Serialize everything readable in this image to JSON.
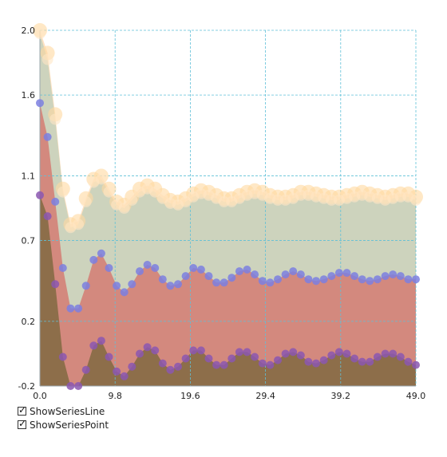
{
  "chart_data": {
    "type": "area",
    "title": "",
    "xlabel": "",
    "ylabel": "",
    "xlim": [
      0,
      49
    ],
    "ylim": [
      -0.2,
      2.0
    ],
    "x_ticks": [
      "0.0",
      "9.8",
      "19.6",
      "29.4",
      "39.2",
      "49.0"
    ],
    "y_ticks": [
      "-0.2",
      "0.2",
      "0.7",
      "1.1",
      "1.6",
      "2.0"
    ],
    "grid": true,
    "x": [
      0,
      1,
      2,
      3,
      4,
      5,
      6,
      7,
      8,
      9,
      10,
      11,
      12,
      13,
      14,
      15,
      16,
      17,
      18,
      19,
      20,
      21,
      22,
      23,
      24,
      25,
      26,
      27,
      28,
      29,
      30,
      31,
      32,
      33,
      34,
      35,
      36,
      37,
      38,
      39,
      40,
      41,
      42,
      43,
      44,
      45,
      46,
      47,
      48,
      49
    ],
    "series": [
      {
        "fill": "#ffe2c2",
        "point_color": "#ffd9a0",
        "values": [
          2.0,
          1.86,
          1.48,
          1.02,
          0.8,
          0.82,
          0.96,
          1.08,
          1.1,
          1.02,
          0.94,
          0.92,
          0.97,
          1.02,
          1.04,
          1.02,
          0.98,
          0.95,
          0.94,
          0.96,
          0.99,
          1.01,
          1.0,
          0.98,
          0.96,
          0.96,
          0.98,
          1.0,
          1.01,
          1.0,
          0.98,
          0.97,
          0.97,
          0.98,
          1.0,
          1.0,
          0.99,
          0.98,
          0.97,
          0.97,
          0.98,
          0.99,
          1.0,
          0.99,
          0.98,
          0.97,
          0.98,
          0.99,
          0.99,
          0.97
        ]
      },
      {
        "fill": "#cdd3bd",
        "point_color": "#ffe6c4",
        "values": [
          1.98,
          1.82,
          1.45,
          1.0,
          0.78,
          0.8,
          0.94,
          1.06,
          1.08,
          1.0,
          0.92,
          0.9,
          0.95,
          1.0,
          1.02,
          1.0,
          0.96,
          0.93,
          0.92,
          0.94,
          0.97,
          0.99,
          0.98,
          0.96,
          0.94,
          0.94,
          0.96,
          0.98,
          0.99,
          0.98,
          0.96,
          0.95,
          0.95,
          0.96,
          0.98,
          0.98,
          0.97,
          0.96,
          0.95,
          0.95,
          0.96,
          0.97,
          0.98,
          0.97,
          0.96,
          0.95,
          0.96,
          0.97,
          0.97,
          0.95
        ]
      },
      {
        "fill": "#d3897e",
        "point_color": "#7b7fe0",
        "values": [
          1.55,
          1.34,
          0.94,
          0.53,
          0.28,
          0.28,
          0.42,
          0.58,
          0.62,
          0.53,
          0.42,
          0.38,
          0.43,
          0.51,
          0.55,
          0.53,
          0.46,
          0.42,
          0.43,
          0.48,
          0.53,
          0.52,
          0.48,
          0.44,
          0.44,
          0.47,
          0.51,
          0.52,
          0.49,
          0.45,
          0.44,
          0.46,
          0.49,
          0.51,
          0.49,
          0.46,
          0.45,
          0.46,
          0.48,
          0.5,
          0.5,
          0.48,
          0.46,
          0.45,
          0.46,
          0.48,
          0.49,
          0.48,
          0.46,
          0.46
        ]
      },
      {
        "fill": "#8d6e4a",
        "point_color": "#8b57b0",
        "values": [
          0.98,
          0.85,
          0.43,
          -0.02,
          -0.2,
          -0.2,
          -0.1,
          0.05,
          0.08,
          -0.02,
          -0.11,
          -0.14,
          -0.08,
          0.0,
          0.04,
          0.02,
          -0.06,
          -0.1,
          -0.08,
          -0.03,
          0.02,
          0.02,
          -0.03,
          -0.07,
          -0.07,
          -0.03,
          0.01,
          0.01,
          -0.02,
          -0.06,
          -0.07,
          -0.04,
          0.0,
          0.01,
          -0.01,
          -0.05,
          -0.06,
          -0.04,
          -0.01,
          0.01,
          0.0,
          -0.03,
          -0.05,
          -0.05,
          -0.02,
          0.0,
          0.0,
          -0.02,
          -0.05,
          -0.07
        ]
      }
    ]
  },
  "options": {
    "show_series_line": "ShowSeriesLine",
    "show_series_point": "ShowSeriesPoint"
  }
}
